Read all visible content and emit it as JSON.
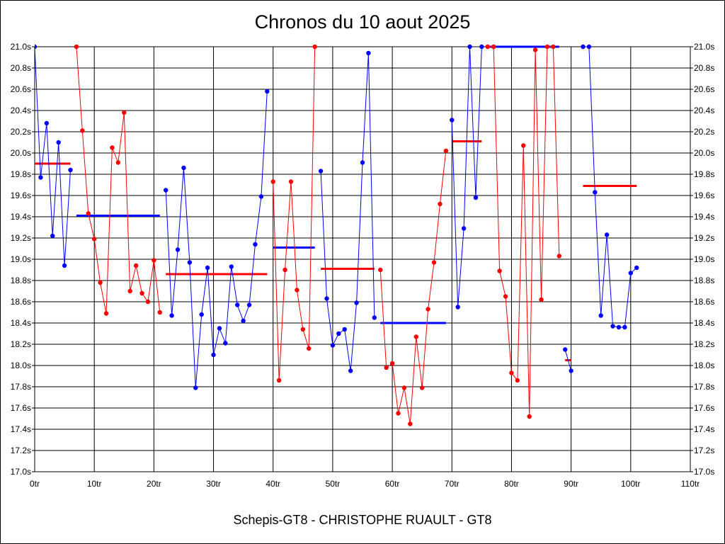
{
  "chart_data": {
    "type": "line",
    "title": "Chronos du 10 aout 2025",
    "subtitle": "Schepis-GT8 - CHRISTOPHE RUAULT - GT8",
    "xlim": [
      0,
      110
    ],
    "ylim": [
      17.0,
      21.0
    ],
    "x_ticks": [
      "0tr",
      "10tr",
      "20tr",
      "30tr",
      "40tr",
      "50tr",
      "60tr",
      "70tr",
      "80tr",
      "90tr",
      "100tr",
      "110tr"
    ],
    "y_ticks": [
      "17.0s",
      "17.2s",
      "17.4s",
      "17.6s",
      "17.8s",
      "18.0s",
      "18.2s",
      "18.4s",
      "18.6s",
      "18.8s",
      "19.0s",
      "19.2s",
      "19.4s",
      "19.6s",
      "19.8s",
      "20.0s",
      "20.2s",
      "20.4s",
      "20.6s",
      "20.8s",
      "21.0s"
    ],
    "grid": true,
    "colors": {
      "blue": "#0000ff",
      "red": "#ff0000"
    },
    "series": [
      {
        "color": "blue",
        "x": [
          0,
          1,
          2,
          3,
          4,
          5,
          6
        ],
        "values": [
          21.0,
          19.77,
          20.28,
          19.22,
          20.1,
          18.94,
          19.84
        ],
        "mean": 19.9
      },
      {
        "color": "red",
        "x": [
          7,
          8,
          9,
          10,
          11,
          12,
          13,
          14,
          15,
          16,
          17,
          18,
          19,
          20,
          21
        ],
        "values": [
          21.0,
          20.21,
          19.43,
          19.19,
          18.78,
          18.49,
          20.05,
          19.91,
          20.38,
          18.7,
          18.94,
          18.68,
          18.6,
          18.99,
          18.5
        ],
        "mean": 19.41
      },
      {
        "color": "blue",
        "x": [
          22,
          23,
          24,
          25,
          26,
          27,
          28,
          29,
          30,
          31,
          32,
          33,
          34,
          35,
          36,
          37,
          38,
          39
        ],
        "values": [
          19.65,
          18.47,
          19.09,
          19.86,
          18.97,
          17.79,
          18.48,
          18.92,
          18.1,
          18.35,
          18.21,
          18.93,
          18.57,
          18.42,
          18.57,
          19.14,
          19.59,
          20.58
        ],
        "mean": 18.86
      },
      {
        "color": "red",
        "x": [
          40,
          41,
          42,
          43,
          44,
          45,
          46,
          47
        ],
        "values": [
          19.73,
          17.86,
          18.9,
          19.73,
          18.71,
          18.34,
          18.16,
          21.0
        ],
        "mean": 19.11
      },
      {
        "color": "blue",
        "x": [
          48,
          49,
          50,
          51,
          52,
          53,
          54,
          55,
          56,
          57
        ],
        "values": [
          19.83,
          18.63,
          18.19,
          18.3,
          18.34,
          17.95,
          18.59,
          19.91,
          20.94,
          18.45
        ],
        "mean": 18.91
      },
      {
        "color": "red",
        "x": [
          58,
          59,
          60,
          61,
          62,
          63,
          64,
          65,
          66,
          67,
          68,
          69
        ],
        "values": [
          18.9,
          17.98,
          18.02,
          17.55,
          17.79,
          17.45,
          18.27,
          17.79,
          18.53,
          18.97,
          19.52,
          20.02
        ],
        "mean": 18.4
      },
      {
        "color": "blue",
        "x": [
          70,
          71,
          72,
          73,
          74,
          75
        ],
        "values": [
          20.31,
          18.55,
          19.29,
          21.0,
          19.58,
          21.0
        ],
        "mean": 20.11
      },
      {
        "color": "red",
        "x": [
          76,
          77,
          78,
          79,
          80,
          81,
          82,
          83,
          84,
          85,
          86,
          87,
          88
        ],
        "values": [
          21.0,
          21.0,
          18.89,
          18.65,
          17.93,
          17.86,
          20.07,
          17.52,
          20.97,
          18.62,
          21.0,
          21.0,
          19.03
        ],
        "mean": 21.0
      },
      {
        "color": "blue",
        "x": [
          89,
          90
        ],
        "values": [
          18.15,
          17.95
        ],
        "mean": 18.05
      },
      {
        "color": "blue",
        "x": [
          92,
          93,
          94,
          95,
          96,
          97,
          98,
          99,
          100,
          101
        ],
        "values": [
          21.0,
          21.0,
          19.63,
          18.47,
          19.23,
          18.37,
          18.36,
          18.36,
          18.87,
          18.92
        ],
        "mean": 19.69
      }
    ],
    "mean_lines": [
      {
        "color": "red",
        "x": [
          0,
          6
        ],
        "value": 19.9
      },
      {
        "color": "blue",
        "x": [
          7,
          21
        ],
        "value": 19.41
      },
      {
        "color": "red",
        "x": [
          22,
          39
        ],
        "value": 18.86
      },
      {
        "color": "blue",
        "x": [
          40,
          47
        ],
        "value": 19.11
      },
      {
        "color": "red",
        "x": [
          48,
          57
        ],
        "value": 18.91
      },
      {
        "color": "blue",
        "x": [
          58,
          69
        ],
        "value": 18.4
      },
      {
        "color": "red",
        "x": [
          70,
          75
        ],
        "value": 20.11
      },
      {
        "color": "blue",
        "x": [
          76,
          88
        ],
        "value": 21.0
      },
      {
        "color": "red",
        "x": [
          89,
          90
        ],
        "value": 18.05
      },
      {
        "color": "red",
        "x": [
          92,
          101
        ],
        "value": 19.69
      }
    ]
  }
}
